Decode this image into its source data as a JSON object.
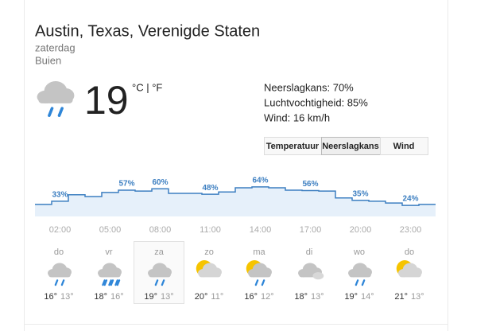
{
  "header": {
    "title": "Austin, Texas, Verenigde Staten",
    "day": "zaterdag",
    "condition": "Buien"
  },
  "current": {
    "icon": "rain",
    "temperature": "19",
    "units": "°C | °F"
  },
  "details": [
    "Neerslagkans: 70%",
    "Luchtvochtigheid: 85%",
    "Wind: 16 km/h"
  ],
  "tabs": {
    "items": [
      "Temperatuur",
      "Neerslagkans",
      "Wind"
    ],
    "selected": 1
  },
  "precipitation": {
    "values": [
      26,
      33,
      47,
      43,
      52,
      57,
      55,
      60,
      50,
      50,
      48,
      53,
      62,
      64,
      62,
      57,
      56,
      55,
      40,
      35,
      33,
      29,
      24,
      26
    ],
    "value_labels": [
      null,
      "33%",
      null,
      null,
      null,
      "57%",
      null,
      "60%",
      null,
      null,
      "48%",
      null,
      null,
      "64%",
      null,
      null,
      "56%",
      null,
      null,
      "35%",
      null,
      null,
      "24%",
      null
    ],
    "ylim": [
      0,
      100
    ],
    "times": [
      "02:00",
      "05:00",
      "08:00",
      "11:00",
      "14:00",
      "17:00",
      "20:00",
      "23:00"
    ],
    "color": "#3d7fc1"
  },
  "days": [
    {
      "name": "do",
      "icon": "rain",
      "high": "16°",
      "low": "13°"
    },
    {
      "name": "vr",
      "icon": "heavy-rain",
      "high": "18°",
      "low": "16°"
    },
    {
      "name": "za",
      "icon": "rain",
      "high": "19°",
      "low": "13°",
      "selected": true
    },
    {
      "name": "zo",
      "icon": "partly-sunny",
      "high": "20°",
      "low": "11°"
    },
    {
      "name": "ma",
      "icon": "sun-rain",
      "high": "16°",
      "low": "12°"
    },
    {
      "name": "di",
      "icon": "cloudy",
      "high": "18°",
      "low": "13°"
    },
    {
      "name": "wo",
      "icon": "rain",
      "high": "19°",
      "low": "14°"
    },
    {
      "name": "do",
      "icon": "partly-sunny",
      "high": "21°",
      "low": "13°"
    }
  ]
}
